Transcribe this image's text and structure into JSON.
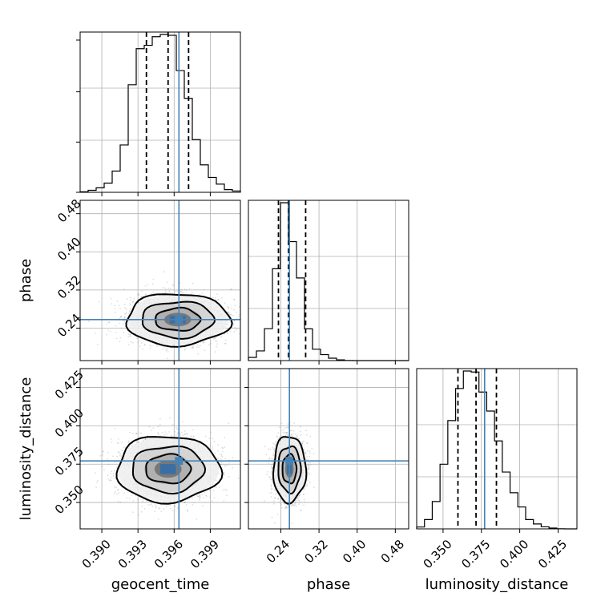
{
  "chart_data": {
    "type": "corner",
    "parameters": [
      {
        "name": "geocent_time",
        "xlabel": "geocent_time",
        "range": [
          0.3882,
          0.4015
        ],
        "ticks": [
          0.39,
          0.393,
          0.396,
          0.399
        ],
        "tick_labels": [
          "0.390",
          "0.393",
          "0.396",
          "0.399"
        ],
        "truth": 0.3964,
        "quantiles": [
          0.3937,
          0.3955,
          0.3972
        ],
        "histogram": {
          "bin_edges": [
            0.3882,
            0.388865,
            0.38953,
            0.390195,
            0.39086,
            0.391525,
            0.39219,
            0.392855,
            0.39352,
            0.394185,
            0.39485,
            0.395515,
            0.39618,
            0.396845,
            0.39751,
            0.398175,
            0.39884,
            0.399505,
            0.40017,
            0.400835,
            0.4015
          ],
          "counts": [
            0.3,
            1.2,
            2.7,
            5.5,
            12.7,
            28.3,
            64.3,
            85.9,
            87.9,
            93.1,
            94.4,
            93.9,
            72.8,
            56.2,
            31.5,
            16.4,
            8.9,
            4.9,
            1.6,
            0.8
          ]
        }
      },
      {
        "name": "phase",
        "ylabel": "phase",
        "xlabel": "phase",
        "range": [
          0.172,
          0.508
        ],
        "ticks": [
          0.24,
          0.32,
          0.4,
          0.48
        ],
        "tick_labels": [
          "0.24",
          "0.32",
          "0.40",
          "0.48"
        ],
        "truth": 0.258,
        "quantiles": [
          0.235,
          0.256,
          0.292
        ],
        "histogram": {
          "bin_edges": [
            0.172,
            0.1888,
            0.2056,
            0.2224,
            0.2392,
            0.256,
            0.2728,
            0.2896,
            0.3064,
            0.3232,
            0.34,
            0.3568,
            0.3736,
            0.3904,
            0.4072,
            0.424,
            0.4408,
            0.4576,
            0.4744,
            0.4912,
            0.508
          ],
          "counts": [
            1.9,
            5.7,
            18.8,
            54.1,
            93.0,
            70.1,
            48.7,
            18.7,
            6.7,
            3.5,
            1.4,
            0.4,
            0.1,
            0.0,
            0.0,
            0.0,
            0.0,
            0.0,
            0.0,
            0.0
          ]
        }
      },
      {
        "name": "luminosity_distance",
        "ylabel": "luminosity_distance",
        "xlabel": "luminosity_distance",
        "range": [
          0.3328,
          0.4373
        ],
        "ticks": [
          0.35,
          0.375,
          0.4,
          0.425
        ],
        "tick_labels": [
          "0.350",
          "0.375",
          "0.400",
          "0.425"
        ],
        "truth": 0.3771,
        "quantiles": [
          0.3597,
          0.3715,
          0.3848
        ],
        "histogram": {
          "bin_edges": [
            0.3328,
            0.337875,
            0.34295,
            0.348025,
            0.3531,
            0.358175,
            0.36325,
            0.368325,
            0.3734,
            0.378475,
            0.38355,
            0.388625,
            0.3937,
            0.398775,
            0.40385,
            0.408925,
            0.414,
            0.419075,
            0.42415,
            0.429225,
            0.4373
          ],
          "counts": [
            1.1,
            5.5,
            16.1,
            38.1,
            63.8,
            82.7,
            93.0,
            92.4,
            80.6,
            69.4,
            51.8,
            33.5,
            21.3,
            12.9,
            5.5,
            2.9,
            1.2,
            0.5,
            0.1,
            0.0
          ]
        }
      }
    ],
    "pairs": [
      {
        "x_param": "geocent_time",
        "y_param": "phase",
        "peak": [
          0.3963,
          0.258
        ],
        "spread": [
          0.00187,
          0.0237
        ]
      },
      {
        "x_param": "geocent_time",
        "y_param": "luminosity_distance",
        "peak": [
          0.3955,
          0.3718
        ],
        "spread": [
          0.00187,
          0.0094
        ]
      },
      {
        "x_param": "phase",
        "y_param": "luminosity_distance",
        "peak": [
          0.258,
          0.3718
        ],
        "spread": [
          0.0148,
          0.0094
        ]
      }
    ],
    "histogram_ticks": [
      0.0,
      0.33,
      0.66,
      1.0
    ],
    "contour_levels": [
      0.4,
      0.6,
      0.8
    ],
    "grid": true,
    "colors": {
      "truth": "#4682b4",
      "line": "#000000",
      "grid": "#b0b0b0",
      "scatter": "#888888"
    }
  }
}
